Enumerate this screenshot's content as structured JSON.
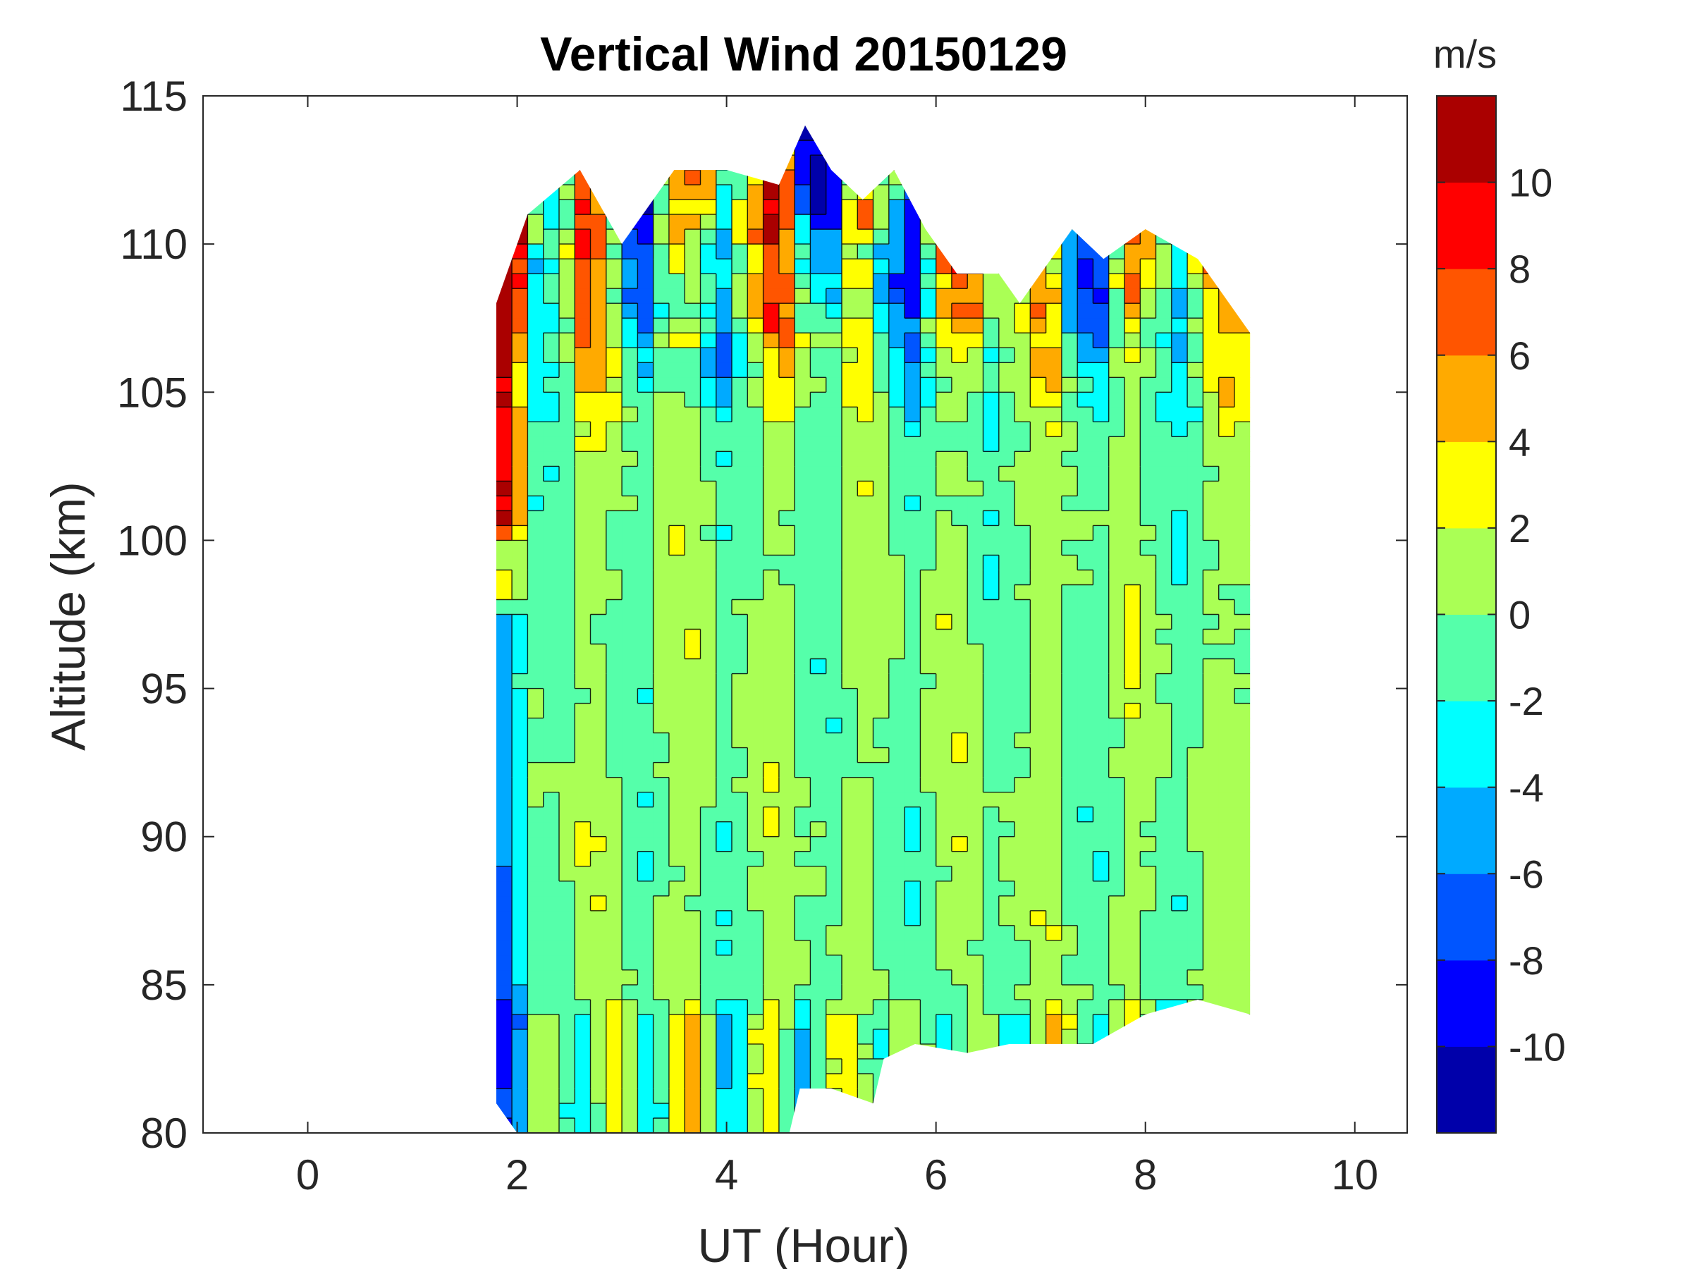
{
  "chart_data": {
    "type": "heatmap",
    "subtype": "filled-contour",
    "title": "Vertical Wind 20150129",
    "xlabel": "UT (Hour)",
    "ylabel": "Altitude (km)",
    "xlim": [
      -1,
      10.5
    ],
    "ylim": [
      80,
      115
    ],
    "xticks": [
      0,
      2,
      4,
      6,
      8,
      10
    ],
    "yticks": [
      80,
      85,
      90,
      95,
      100,
      105,
      110,
      115
    ],
    "grid": false,
    "data_extent": {
      "x_range": [
        1.8,
        9.0
      ],
      "lower_boundary": [
        [
          1.8,
          81.0
        ],
        [
          2.0,
          80.0
        ],
        [
          4.6,
          80.0
        ],
        [
          4.7,
          81.5
        ],
        [
          5.0,
          81.5
        ],
        [
          5.4,
          81.0
        ],
        [
          5.5,
          82.5
        ],
        [
          5.8,
          83.0
        ],
        [
          6.3,
          82.7
        ],
        [
          6.7,
          83.0
        ],
        [
          7.5,
          83.0
        ],
        [
          8.0,
          84.0
        ],
        [
          8.5,
          84.5
        ],
        [
          9.0,
          84.0
        ]
      ],
      "upper_boundary": [
        [
          1.8,
          108.0
        ],
        [
          2.1,
          111.0
        ],
        [
          2.6,
          112.5
        ],
        [
          3.0,
          110.0
        ],
        [
          3.5,
          112.5
        ],
        [
          4.0,
          112.5
        ],
        [
          4.5,
          112.0
        ],
        [
          4.75,
          114.0
        ],
        [
          5.0,
          112.5
        ],
        [
          5.3,
          111.5
        ],
        [
          5.6,
          112.5
        ],
        [
          5.9,
          110.5
        ],
        [
          6.2,
          109.0
        ],
        [
          6.6,
          109.0
        ],
        [
          6.8,
          108.0
        ],
        [
          7.3,
          110.5
        ],
        [
          7.6,
          109.5
        ],
        [
          8.0,
          110.5
        ],
        [
          8.5,
          109.5
        ],
        [
          9.0,
          107.0
        ]
      ]
    },
    "colorbar": {
      "label": "m/s",
      "range": [
        -12,
        12
      ],
      "tick_values": [
        10,
        8,
        6,
        4,
        2,
        0,
        -2,
        -4,
        -6,
        -8,
        -10
      ],
      "tick_labels": [
        "10",
        "8",
        "6",
        "4",
        "2",
        "0",
        "-2",
        "-4",
        "-6",
        "-8",
        "-10"
      ],
      "levels": [
        -12,
        -10,
        -8,
        -6,
        -4,
        -2,
        0,
        2,
        4,
        6,
        8,
        10,
        12
      ],
      "colors": [
        "#0000aa",
        "#0000ff",
        "#0055ff",
        "#00aaff",
        "#00ffff",
        "#55ffaa",
        "#aaff55",
        "#ffff00",
        "#ffaa00",
        "#ff5500",
        "#ff0000",
        "#aa0000"
      ]
    },
    "field_description": "Mostly -2 to +2 m/s at 83-103 km with vertical columnar structures; stronger +/-10 m/s variability above 103 km and near the edges of the observation window."
  },
  "axis_color": "#262626"
}
